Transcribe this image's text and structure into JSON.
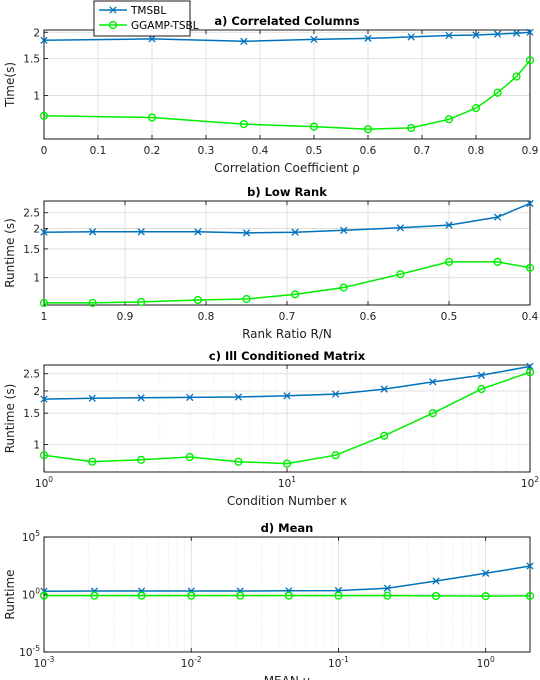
{
  "colors": {
    "tmsbl": "#0072BD",
    "ggamp": "#00EE00",
    "grid": "#D9D9D9",
    "axis": "#000000"
  },
  "legend": {
    "placement": "top-left",
    "entries": [
      "TMSBL",
      "GGAMP-TSBL"
    ]
  },
  "chart_data": [
    {
      "type": "line",
      "title": "a) Correlated Columns",
      "xlabel": "Correlation Coefficient ρ",
      "ylabel": "Time(s)",
      "xscale": "linear",
      "yscale": "log",
      "xlim": [
        0,
        0.9
      ],
      "ylim": [
        0.62,
        2.05
      ],
      "xticks": [
        0,
        0.1,
        0.2,
        0.3,
        0.4,
        0.5,
        0.6,
        0.7,
        0.8,
        0.9
      ],
      "xtick_labels": [
        "0",
        "0.1",
        "0.2",
        "0.3",
        "0.4",
        "0.5",
        "0.6",
        "0.7",
        "0.8",
        "0.9"
      ],
      "yticks": [
        1,
        1.5,
        2
      ],
      "ytick_labels": [
        "1",
        "1.5",
        "2"
      ],
      "grid": true,
      "series": [
        {
          "name": "TMSBL",
          "x": [
            0,
            0.2,
            0.37,
            0.5,
            0.6,
            0.68,
            0.75,
            0.8,
            0.84,
            0.875,
            0.9
          ],
          "y": [
            1.83,
            1.86,
            1.81,
            1.85,
            1.87,
            1.9,
            1.93,
            1.94,
            1.96,
            1.98,
            2.0
          ]
        },
        {
          "name": "GGAMP-TSBL",
          "x": [
            0,
            0.2,
            0.37,
            0.5,
            0.6,
            0.68,
            0.75,
            0.8,
            0.84,
            0.875,
            0.9
          ],
          "y": [
            0.8,
            0.785,
            0.73,
            0.71,
            0.69,
            0.7,
            0.77,
            0.87,
            1.03,
            1.23,
            1.47
          ]
        }
      ]
    },
    {
      "type": "line",
      "title": "b) Low Rank",
      "xlabel": "Rank Ratio R/N",
      "ylabel": "Runtime (s)",
      "xscale": "linear-reversed",
      "yscale": "log",
      "xlim": [
        1,
        0.4
      ],
      "ylim": [
        0.68,
        2.95
      ],
      "xticks": [
        1,
        0.9,
        0.8,
        0.7,
        0.6,
        0.5,
        0.4
      ],
      "xtick_labels": [
        "1",
        "0.9",
        "0.8",
        "0.7",
        "0.6",
        "0.5",
        "0.4"
      ],
      "yticks": [
        1,
        1.5,
        2,
        2.5
      ],
      "ytick_labels": [
        "1",
        "1.5",
        "2",
        "2.5"
      ],
      "grid": true,
      "series": [
        {
          "name": "TMSBL",
          "x": [
            1,
            0.94,
            0.88,
            0.81,
            0.75,
            0.69,
            0.63,
            0.56,
            0.5,
            0.44,
            0.4
          ],
          "y": [
            1.9,
            1.91,
            1.91,
            1.91,
            1.88,
            1.9,
            1.95,
            2.02,
            2.1,
            2.35,
            2.85
          ]
        },
        {
          "name": "GGAMP-TSBL",
          "x": [
            1,
            0.94,
            0.88,
            0.81,
            0.75,
            0.69,
            0.63,
            0.56,
            0.5,
            0.44,
            0.4
          ],
          "y": [
            0.7,
            0.7,
            0.71,
            0.73,
            0.74,
            0.79,
            0.87,
            1.05,
            1.25,
            1.25,
            1.15
          ]
        }
      ]
    },
    {
      "type": "line",
      "title": "c) Ill Conditioned Matrix",
      "xlabel": "Condition Number κ",
      "ylabel": "Runtime (s)",
      "xscale": "log",
      "yscale": "log",
      "xlim": [
        1,
        100
      ],
      "ylim": [
        0.7,
        2.8
      ],
      "xticks": [
        1,
        10,
        100
      ],
      "xtick_labels": [
        "10",
        "10",
        "10"
      ],
      "xtick_exponents": [
        "0",
        "1",
        "2"
      ],
      "yticks": [
        1,
        1.5,
        2,
        2.5
      ],
      "ytick_labels": [
        "1",
        "1.5",
        "2",
        "2.5"
      ],
      "grid": true,
      "series": [
        {
          "name": "TMSBL",
          "x": [
            1,
            1.58,
            2.51,
            3.98,
            6.31,
            10,
            15.85,
            25.12,
            39.81,
            63.1,
            100
          ],
          "y": [
            1.8,
            1.82,
            1.83,
            1.84,
            1.85,
            1.88,
            1.92,
            2.05,
            2.25,
            2.45,
            2.75
          ]
        },
        {
          "name": "GGAMP-TSBL",
          "x": [
            1,
            1.58,
            2.51,
            3.98,
            6.31,
            10,
            15.85,
            25.12,
            39.81,
            63.1,
            100
          ],
          "y": [
            0.87,
            0.8,
            0.82,
            0.85,
            0.8,
            0.78,
            0.87,
            1.12,
            1.5,
            2.05,
            2.55
          ]
        }
      ]
    },
    {
      "type": "line",
      "title": "d) Mean",
      "xlabel": "MEAN μ",
      "ylabel": "Runtime",
      "xscale": "log",
      "yscale": "log",
      "xlim": [
        0.001,
        2
      ],
      "ylim": [
        1e-05,
        100000
      ],
      "xticks": [
        0.001,
        0.01,
        0.1,
        1
      ],
      "xtick_labels": [
        "10",
        "10",
        "10",
        "10"
      ],
      "xtick_exponents": [
        "-3",
        "-2",
        "-1",
        "0"
      ],
      "yticks": [
        1e-05,
        1,
        100000
      ],
      "ytick_labels": [
        "10",
        "10",
        "10"
      ],
      "ytick_exponents": [
        "-5",
        "0",
        "5"
      ],
      "grid": true,
      "series": [
        {
          "name": "TMSBL",
          "x": [
            0.001,
            0.0022,
            0.0046,
            0.01,
            0.0215,
            0.046,
            0.1,
            0.215,
            0.46,
            1,
            2
          ],
          "y": [
            1.9,
            2,
            2,
            2,
            2,
            2.1,
            2.2,
            3.5,
            15,
            70,
            300
          ]
        },
        {
          "name": "GGAMP-TSBL",
          "x": [
            0.001,
            0.0022,
            0.0046,
            0.01,
            0.0215,
            0.046,
            0.1,
            0.215,
            0.46,
            1,
            2
          ],
          "y": [
            0.8,
            0.8,
            0.8,
            0.8,
            0.8,
            0.8,
            0.8,
            0.8,
            0.75,
            0.72,
            0.75
          ]
        }
      ]
    }
  ]
}
